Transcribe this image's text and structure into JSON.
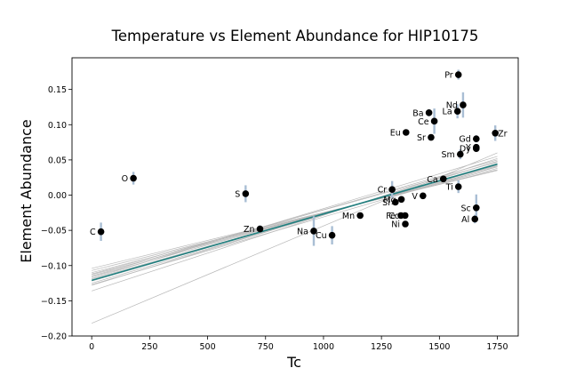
{
  "chart_data": {
    "type": "scatter",
    "title": "Temperature vs Element Abundance for HIP10175",
    "xlabel": "Tc",
    "ylabel": "Element Abundance",
    "xlim": [
      -85,
      1840
    ],
    "ylim": [
      -0.2,
      0.195
    ],
    "xticks": [
      0,
      250,
      500,
      750,
      1000,
      1250,
      1500,
      1750
    ],
    "yticks": [
      -0.2,
      -0.15,
      -0.1,
      -0.05,
      0.0,
      0.05,
      0.1,
      0.15
    ],
    "grid": false,
    "colors": {
      "points": "#000000",
      "errorbars": "#a9bed4",
      "fit_line": "#1f7f7f",
      "sample_lines": "#b8b8b8"
    },
    "fit_line": {
      "x": [
        0,
        1750
      ],
      "y": [
        -0.121,
        0.044
      ]
    },
    "sample_lines": [
      {
        "y0": -0.182,
        "y1": 0.06
      },
      {
        "y0": -0.136,
        "y1": 0.052
      },
      {
        "y0": -0.128,
        "y1": 0.048
      },
      {
        "y0": -0.125,
        "y1": 0.045
      },
      {
        "y0": -0.122,
        "y1": 0.044
      },
      {
        "y0": -0.119,
        "y1": 0.043
      },
      {
        "y0": -0.116,
        "y1": 0.042
      },
      {
        "y0": -0.113,
        "y1": 0.04
      },
      {
        "y0": -0.11,
        "y1": 0.038
      },
      {
        "y0": -0.107,
        "y1": 0.036
      },
      {
        "y0": -0.104,
        "y1": 0.035
      },
      {
        "y0": -0.115,
        "y1": 0.05
      },
      {
        "y0": -0.112,
        "y1": 0.047
      },
      {
        "y0": -0.118,
        "y1": 0.055
      },
      {
        "y0": -0.127,
        "y1": 0.041
      }
    ],
    "points": [
      {
        "label": "C",
        "x": 40,
        "y": -0.052,
        "err": 0.013,
        "anchor": "left"
      },
      {
        "label": "O",
        "x": 180,
        "y": 0.024,
        "err": 0.009,
        "anchor": "left"
      },
      {
        "label": "S",
        "x": 664,
        "y": 0.002,
        "err": 0.012,
        "anchor": "left"
      },
      {
        "label": "Zn",
        "x": 726,
        "y": -0.048,
        "err": 0.005,
        "anchor": "left"
      },
      {
        "label": "Na",
        "x": 958,
        "y": -0.051,
        "err": 0.021,
        "anchor": "left"
      },
      {
        "label": "Cu",
        "x": 1037,
        "y": -0.057,
        "err": 0.013,
        "anchor": "left"
      },
      {
        "label": "Mn",
        "x": 1158,
        "y": -0.029,
        "err": 0.003,
        "anchor": "left"
      },
      {
        "label": "Cr",
        "x": 1296,
        "y": 0.008,
        "err": 0.012,
        "anchor": "left"
      },
      {
        "label": "Si",
        "x": 1310,
        "y": -0.01,
        "err": 0.004,
        "anchor": "left"
      },
      {
        "label": "Mg",
        "x": 1336,
        "y": -0.006,
        "err": 0.004,
        "anchor": "left"
      },
      {
        "label": "Fe",
        "x": 1334,
        "y": -0.029,
        "err": 0.003,
        "anchor": "left"
      },
      {
        "label": "Co",
        "x": 1352,
        "y": -0.029,
        "err": 0.003,
        "anchor": "left"
      },
      {
        "label": "Ni",
        "x": 1353,
        "y": -0.041,
        "err": 0.003,
        "anchor": "left"
      },
      {
        "label": "V",
        "x": 1429,
        "y": -0.001,
        "err": 0.004,
        "anchor": "left"
      },
      {
        "label": "Eu",
        "x": 1356,
        "y": 0.089,
        "err": 0.003,
        "anchor": "left"
      },
      {
        "label": "Ba",
        "x": 1455,
        "y": 0.117,
        "err": 0.005,
        "anchor": "left"
      },
      {
        "label": "Sr",
        "x": 1464,
        "y": 0.082,
        "err": 0.003,
        "anchor": "left"
      },
      {
        "label": "Ce",
        "x": 1478,
        "y": 0.105,
        "err": 0.018,
        "anchor": "left"
      },
      {
        "label": "La",
        "x": 1578,
        "y": 0.119,
        "err": 0.01,
        "anchor": "left"
      },
      {
        "label": "Pr",
        "x": 1582,
        "y": 0.171,
        "err": 0.007,
        "anchor": "left"
      },
      {
        "label": "Nd",
        "x": 1602,
        "y": 0.128,
        "err": 0.018,
        "anchor": "left"
      },
      {
        "label": "Sm",
        "x": 1590,
        "y": 0.058,
        "err": 0.007,
        "anchor": "left"
      },
      {
        "label": "Ca",
        "x": 1517,
        "y": 0.023,
        "err": 0.003,
        "anchor": "left"
      },
      {
        "label": "Ti",
        "x": 1582,
        "y": 0.012,
        "err": 0.009,
        "anchor": "left"
      },
      {
        "label": "Gd",
        "x": 1659,
        "y": 0.08,
        "err": 0.005,
        "anchor": "left"
      },
      {
        "label": "Dy",
        "x": 1659,
        "y": 0.066,
        "err": 0.004,
        "anchor": "left"
      },
      {
        "label": "Y",
        "x": 1659,
        "y": 0.068,
        "err": 0.003,
        "anchor": "left"
      },
      {
        "label": "Zr",
        "x": 1741,
        "y": 0.088,
        "err": 0.011,
        "anchor": "right"
      },
      {
        "label": "Sc",
        "x": 1659,
        "y": -0.018,
        "err": 0.019,
        "anchor": "left"
      },
      {
        "label": "Al",
        "x": 1653,
        "y": -0.034,
        "err": 0.006,
        "anchor": "left"
      }
    ]
  }
}
